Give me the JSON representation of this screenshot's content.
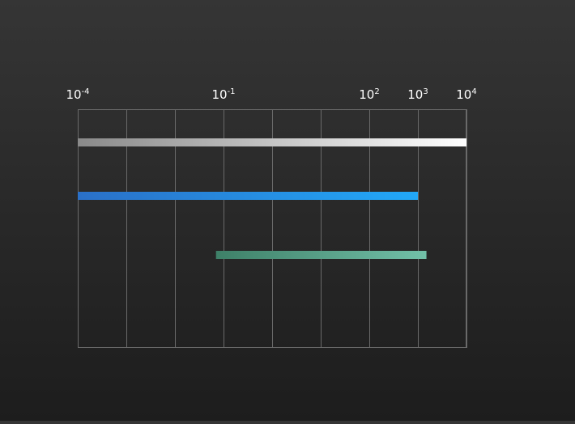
{
  "chart_data": {
    "type": "range-bar",
    "x_scale": "log10",
    "xlim": [
      0.0001,
      10000
    ],
    "x_ticks": [
      {
        "base": "10",
        "exp": "-4",
        "value": 0.0001
      },
      {
        "base": "10",
        "exp": "-1",
        "value": 0.1
      },
      {
        "base": "10",
        "exp": "2",
        "value": 100
      },
      {
        "base": "10",
        "exp": "3",
        "value": 1000
      },
      {
        "base": "10",
        "exp": "4",
        "value": 10000
      }
    ],
    "grid_lines_at": [
      0.0001,
      0.001,
      0.01,
      0.1,
      1,
      10,
      100,
      1000,
      10000
    ],
    "grid": true,
    "series": [
      {
        "start": 0.0001,
        "end": 10000,
        "colors": [
          "#8a8a8a",
          "#ffffff"
        ]
      },
      {
        "start": 0.0001,
        "end": 1000,
        "colors": [
          "#2a70c8",
          "#22a8f8"
        ]
      },
      {
        "start": 0.07,
        "end": 1500,
        "colors": [
          "#3e8068",
          "#72c0a8"
        ]
      }
    ],
    "colors": {
      "grid": "#6a6a6a",
      "tick_label": "#ffffff"
    }
  }
}
